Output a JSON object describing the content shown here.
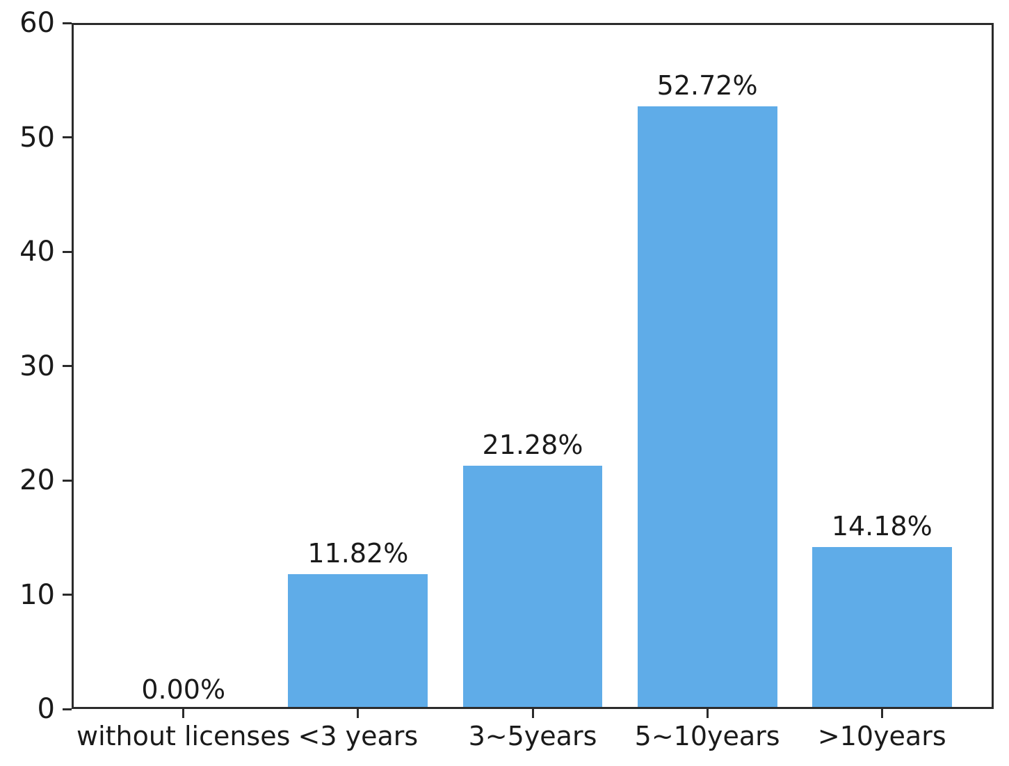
{
  "chart_data": {
    "type": "bar",
    "title": "",
    "xlabel": "",
    "ylabel": "",
    "categories": [
      "without licenses",
      "<3 years",
      "3~5years",
      "5~10years",
      ">10years"
    ],
    "values": [
      0.0,
      11.82,
      21.28,
      52.72,
      14.18
    ],
    "data_labels": [
      "0.00%",
      "11.82%",
      "21.28%",
      "52.72%",
      "14.18%"
    ],
    "ylim": [
      0,
      60
    ],
    "yticks": [
      0,
      10,
      20,
      30,
      40,
      50,
      60
    ],
    "grid": false,
    "legend": null,
    "colors": {
      "bar": "#5FACE8",
      "spine": "#2b2b2b",
      "text": "#1a1a1a",
      "background": "#ffffff"
    }
  }
}
